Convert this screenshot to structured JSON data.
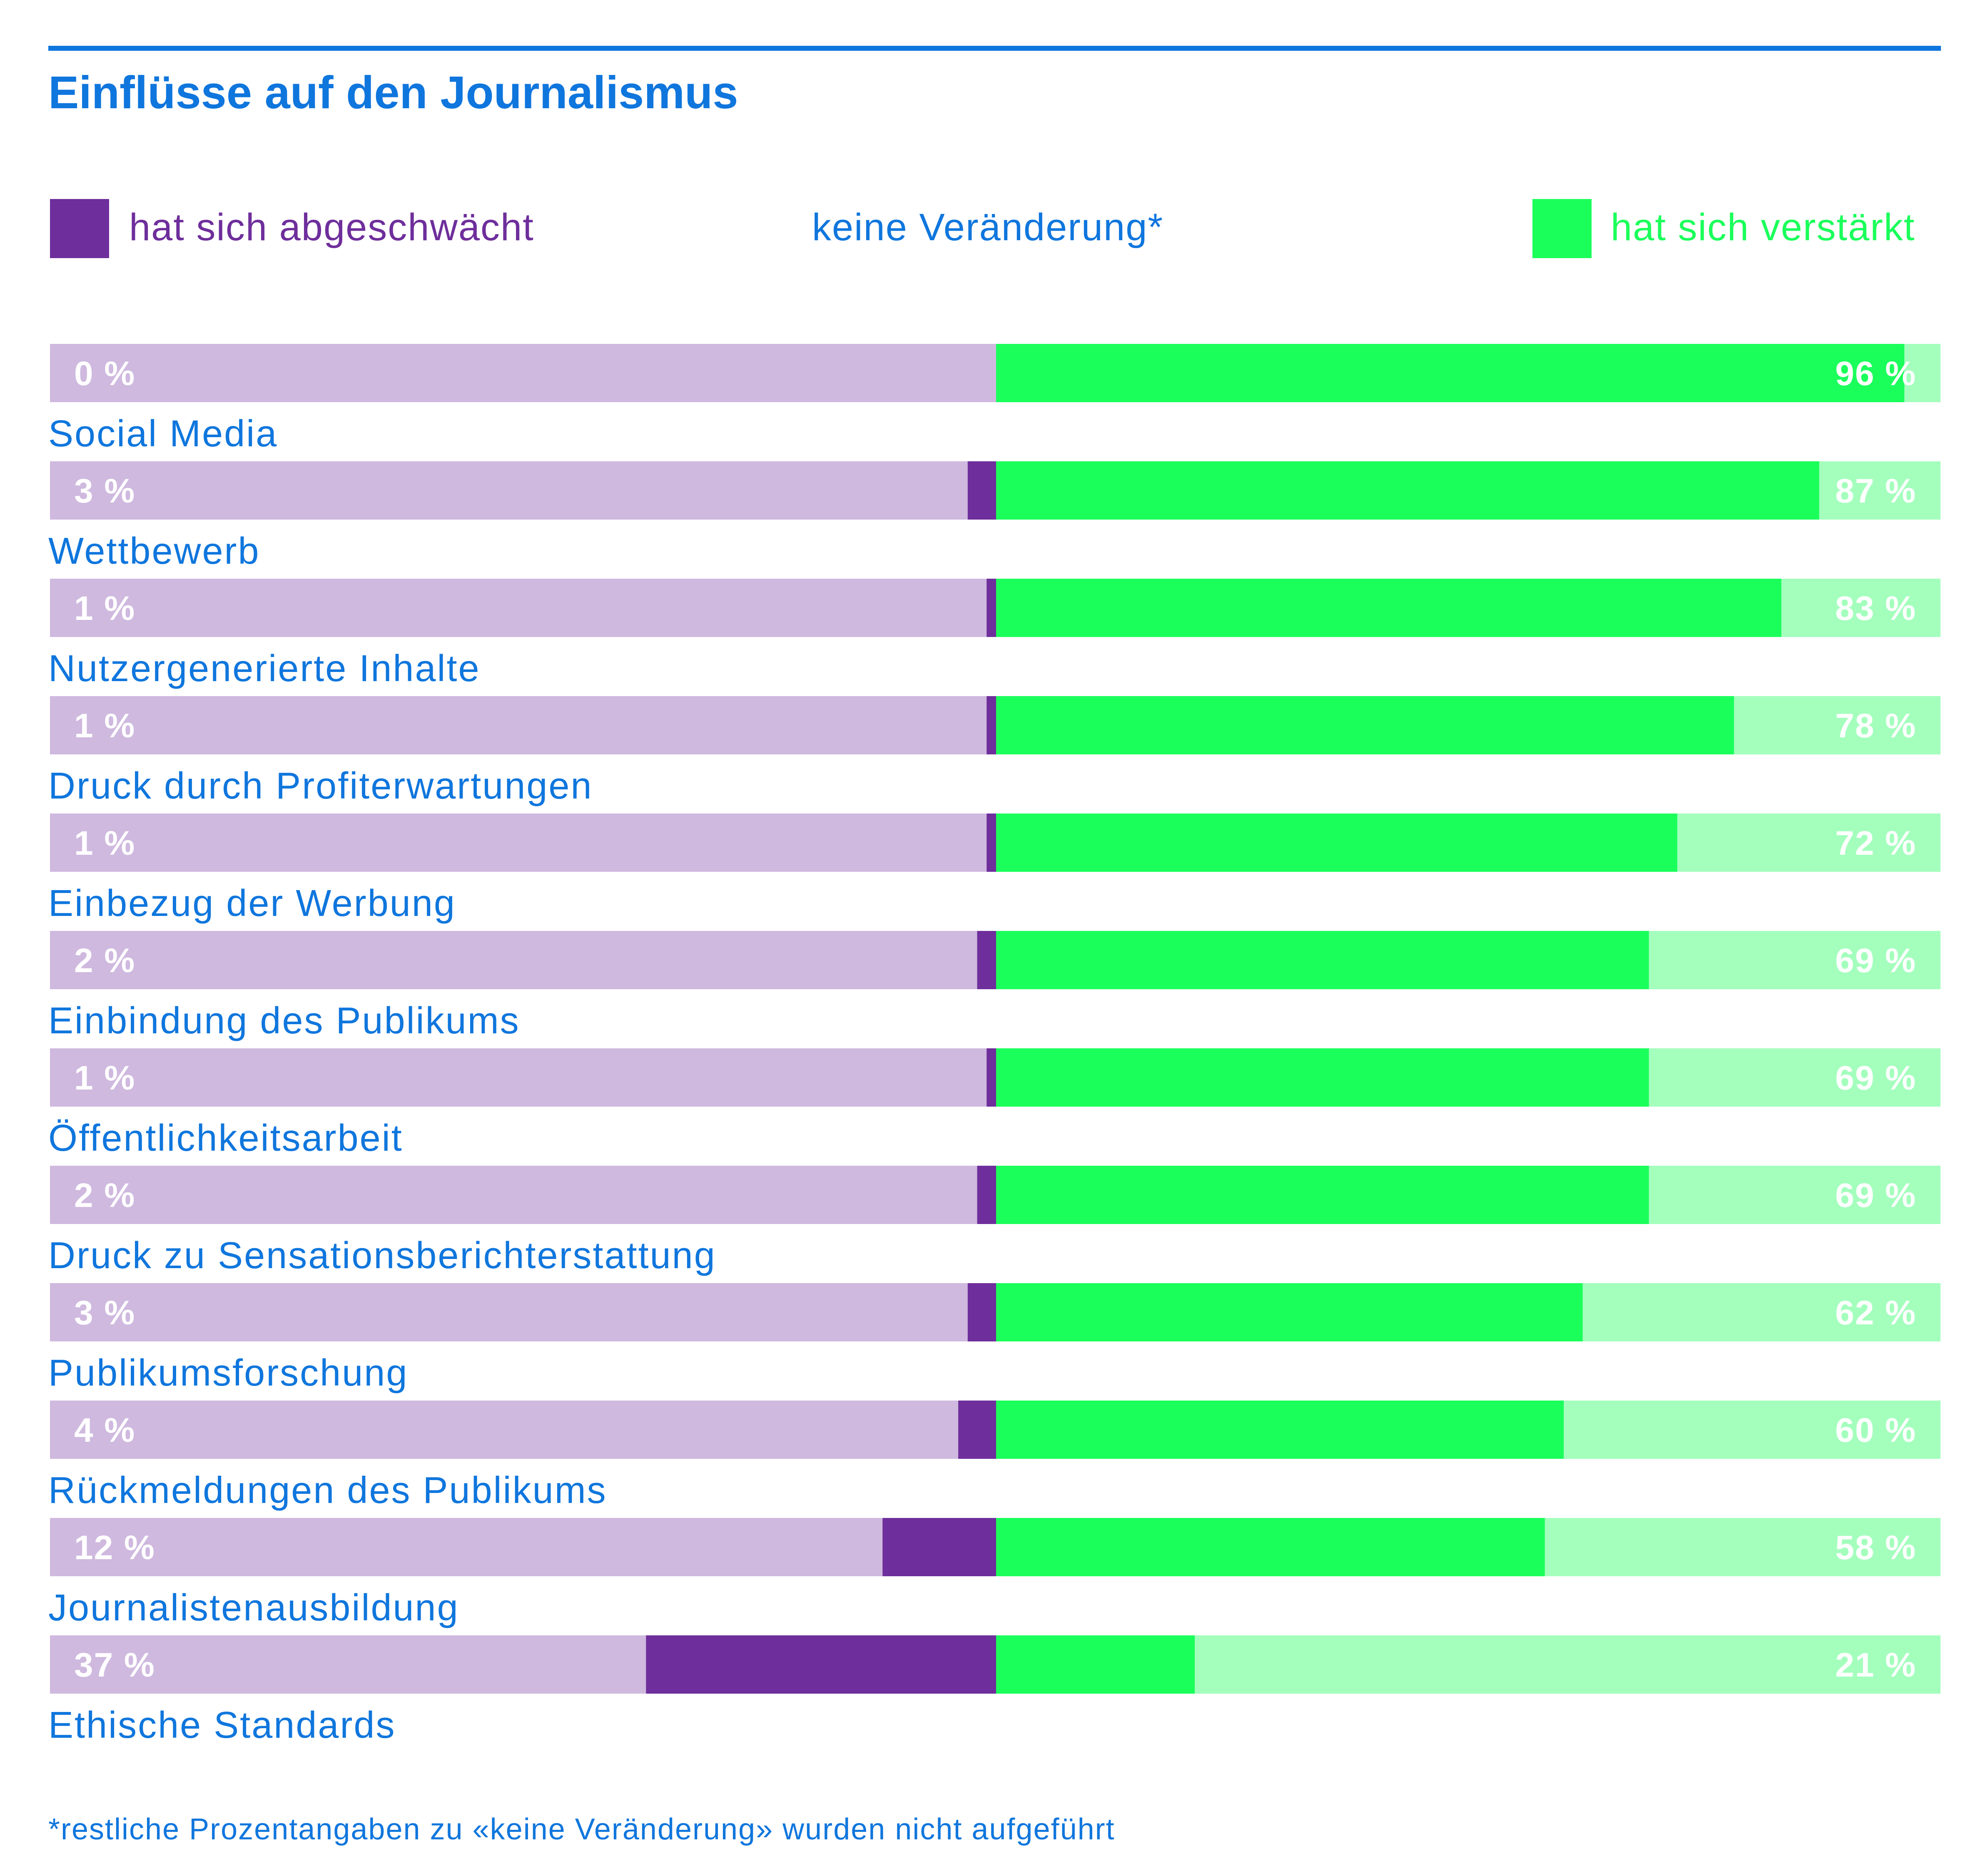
{
  "title": "Einflüsse auf den Journalismus",
  "legend": {
    "weakened": "hat sich abgeschwächt",
    "no_change": "keine Veränderung*",
    "strengthened": "hat sich verstärkt"
  },
  "colors": {
    "accent_blue": "#0f76dd",
    "weakened": "#6e2e9b",
    "weakened_light": "#cfb9df",
    "strengthened": "#1bff5b",
    "strengthened_light": "#a4ffbd"
  },
  "footnote": "*restliche Prozentangaben zu «keine Veränderung» wurden nicht aufgeführt",
  "chart_data": {
    "type": "bar",
    "subtype": "diverging-stacked-horizontal",
    "title": "Einflüsse auf den Journalismus",
    "xlabel": "",
    "ylabel": "",
    "unit": "%",
    "categories": [
      "Social Media",
      "Wettbewerb",
      "Nutzergenerierte Inhalte",
      "Druck durch Profiterwartungen",
      "Einbezug der Werbung",
      "Einbindung des Publikums",
      "Öffentlichkeitsarbeit",
      "Druck zu Sensationsberichterstattung",
      "Publikumsforschung",
      "Rückmeldungen des Publikums",
      "Journalistenausbildung",
      "Ethische Standards"
    ],
    "series": [
      {
        "name": "hat sich abgeschwächt",
        "values": [
          0,
          3,
          1,
          1,
          1,
          2,
          1,
          2,
          3,
          4,
          12,
          37
        ],
        "labels": [
          "0 %",
          "3 %",
          "1 %",
          "1 %",
          "1 %",
          "2 %",
          "1 %",
          "2 %",
          "3 %",
          "4 %",
          "12 %",
          "37 %"
        ]
      },
      {
        "name": "hat sich verstärkt",
        "values": [
          96,
          87,
          83,
          78,
          72,
          69,
          69,
          69,
          62,
          60,
          58,
          21
        ],
        "labels": [
          "96 %",
          "87 %",
          "83 %",
          "78 %",
          "72 %",
          "69 %",
          "69 %",
          "69 %",
          "62 %",
          "60 %",
          "58 %",
          "21 %"
        ]
      }
    ],
    "xlim": [
      -100,
      100
    ],
    "grid": false,
    "legend_position": "top"
  }
}
